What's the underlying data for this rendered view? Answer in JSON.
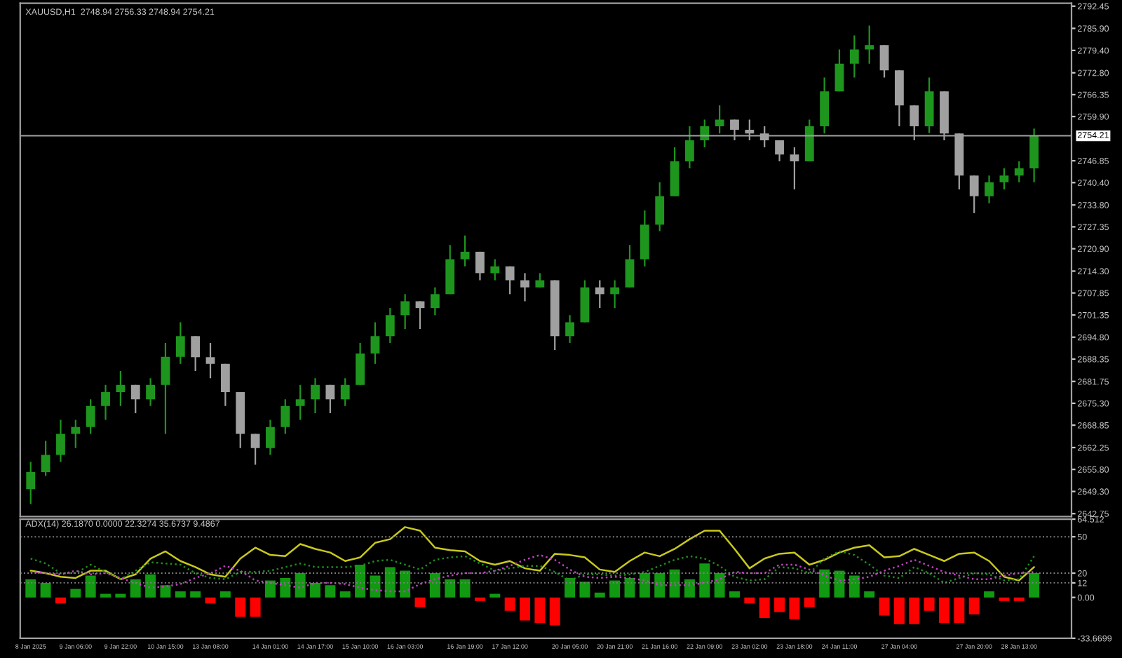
{
  "chart_data": [
    {
      "type": "candlestick",
      "title": "XAUUSD,H1  2748.94 2756.33 2748.94 2754.21",
      "tick_labels": "y",
      "grid": false,
      "legend": false,
      "categories": [
        null,
        null,
        null,
        null,
        null,
        null,
        null,
        null,
        null,
        null,
        null,
        null,
        null,
        null,
        null,
        null,
        null,
        null,
        null,
        null,
        null,
        null,
        null,
        null,
        null,
        null,
        null,
        null,
        null,
        null,
        null,
        null,
        null,
        null,
        null,
        null,
        null,
        null,
        null,
        null,
        null,
        null,
        null,
        null,
        null,
        null,
        null,
        null,
        null,
        null,
        null,
        null,
        null,
        null,
        null,
        null,
        null,
        null,
        null,
        null,
        null,
        null,
        null,
        null,
        null,
        null,
        null,
        null,
        null,
        null
      ],
      "ylim": [
        2641.9,
        2793.3
      ],
      "yticks": [
        {
          "value": 2792.45,
          "label": "2792.45"
        },
        {
          "value": 2785.9,
          "label": "2785.90"
        },
        {
          "value": 2779.4,
          "label": "2779.40"
        },
        {
          "value": 2772.8,
          "label": "2772.80"
        },
        {
          "value": 2766.35,
          "label": "2766.35"
        },
        {
          "value": 2759.9,
          "label": "2759.90"
        },
        {
          "value": 2746.85,
          "label": "2746.85"
        },
        {
          "value": 2740.4,
          "label": "2740.40"
        },
        {
          "value": 2733.8,
          "label": "2733.80"
        },
        {
          "value": 2727.35,
          "label": "2727.35"
        },
        {
          "value": 2720.9,
          "label": "2720.90"
        },
        {
          "value": 2714.3,
          "label": "2714.30"
        },
        {
          "value": 2707.85,
          "label": "2707.85"
        },
        {
          "value": 2701.35,
          "label": "2701.35"
        },
        {
          "value": 2694.8,
          "label": "2694.80"
        },
        {
          "value": 2688.35,
          "label": "2688.35"
        },
        {
          "value": 2681.75,
          "label": "2681.75"
        },
        {
          "value": 2675.3,
          "label": "2675.30"
        },
        {
          "value": 2668.85,
          "label": "2668.85"
        },
        {
          "value": 2662.25,
          "label": "2662.25"
        },
        {
          "value": 2655.8,
          "label": "2655.80"
        },
        {
          "value": 2649.3,
          "label": "2649.30"
        },
        {
          "value": 2642.75,
          "label": "2642.75"
        }
      ],
      "ref_lines": [
        {
          "axis": "y",
          "value": 2754.21,
          "label": "2754.21",
          "color": "#a0a0a0"
        }
      ],
      "ohlc": [
        [
          2650.0,
          2658.0,
          2645.6,
          2655.0
        ],
        [
          2655.0,
          2664.2,
          2653.9,
          2660.1
        ],
        [
          2660.1,
          2670.4,
          2658.0,
          2666.3
        ],
        [
          2666.3,
          2670.4,
          2662.1,
          2668.3
        ],
        [
          2668.3,
          2676.5,
          2666.3,
          2674.5
        ],
        [
          2674.5,
          2680.7,
          2670.4,
          2678.6
        ],
        [
          2678.6,
          2684.8,
          2674.5,
          2680.7
        ],
        [
          2680.7,
          2680.7,
          2672.4,
          2676.5
        ],
        [
          2676.5,
          2682.7,
          2674.5,
          2680.7
        ],
        [
          2680.7,
          2693.1,
          2666.3,
          2689.0
        ],
        [
          2689.0,
          2699.2,
          2686.9,
          2695.1
        ],
        [
          2695.1,
          2695.1,
          2684.8,
          2688.9
        ],
        [
          2688.9,
          2693.1,
          2682.7,
          2686.9
        ],
        [
          2686.9,
          2686.9,
          2674.5,
          2678.6
        ],
        [
          2678.6,
          2678.6,
          2662.1,
          2666.3
        ],
        [
          2666.3,
          2666.3,
          2657.2,
          2662.1
        ],
        [
          2662.1,
          2670.4,
          2660.1,
          2668.3
        ],
        [
          2668.3,
          2676.5,
          2666.3,
          2674.5
        ],
        [
          2674.5,
          2680.7,
          2670.4,
          2676.5
        ],
        [
          2676.5,
          2682.7,
          2672.4,
          2680.7
        ],
        [
          2680.7,
          2680.7,
          2672.4,
          2676.5
        ],
        [
          2676.5,
          2682.7,
          2674.5,
          2680.7
        ],
        [
          2680.7,
          2693.1,
          2680.7,
          2690.0
        ],
        [
          2690.0,
          2699.2,
          2686.9,
          2695.1
        ],
        [
          2695.1,
          2703.4,
          2693.1,
          2701.3
        ],
        [
          2701.3,
          2707.5,
          2697.2,
          2705.4
        ],
        [
          2705.4,
          2705.4,
          2697.2,
          2703.4
        ],
        [
          2703.4,
          2709.5,
          2701.3,
          2707.5
        ],
        [
          2707.5,
          2722.0,
          2707.5,
          2717.8
        ],
        [
          2717.8,
          2724.8,
          2715.7,
          2720.0
        ],
        [
          2720.0,
          2720.0,
          2711.6,
          2713.7
        ],
        [
          2713.7,
          2717.8,
          2711.6,
          2715.7
        ],
        [
          2715.7,
          2715.7,
          2707.5,
          2711.6
        ],
        [
          2711.6,
          2713.7,
          2705.4,
          2709.5
        ],
        [
          2709.5,
          2713.7,
          2709.5,
          2711.6
        ],
        [
          2711.6,
          2711.6,
          2691.0,
          2695.1
        ],
        [
          2695.1,
          2701.3,
          2693.1,
          2699.2
        ],
        [
          2699.2,
          2711.6,
          2699.2,
          2709.5
        ],
        [
          2709.5,
          2711.6,
          2703.4,
          2707.5
        ],
        [
          2707.5,
          2711.6,
          2703.4,
          2709.5
        ],
        [
          2709.5,
          2722.0,
          2709.5,
          2717.8
        ],
        [
          2717.8,
          2732.2,
          2715.7,
          2728.0
        ],
        [
          2728.0,
          2740.5,
          2726.1,
          2736.4
        ],
        [
          2736.4,
          2750.8,
          2736.4,
          2746.7
        ],
        [
          2746.7,
          2757.0,
          2744.6,
          2752.9
        ],
        [
          2752.9,
          2759.0,
          2750.8,
          2757.0
        ],
        [
          2757.0,
          2763.2,
          2754.9,
          2759.0
        ],
        [
          2759.0,
          2759.0,
          2752.9,
          2756.0
        ],
        [
          2756.0,
          2759.0,
          2752.9,
          2754.9
        ],
        [
          2754.9,
          2757.0,
          2750.8,
          2752.9
        ],
        [
          2752.9,
          2752.9,
          2746.7,
          2748.7
        ],
        [
          2748.7,
          2750.8,
          2738.4,
          2746.7
        ],
        [
          2746.7,
          2759.0,
          2746.7,
          2757.0
        ],
        [
          2757.0,
          2771.4,
          2754.9,
          2767.3
        ],
        [
          2767.3,
          2779.7,
          2767.3,
          2775.5
        ],
        [
          2775.5,
          2783.8,
          2771.4,
          2779.7
        ],
        [
          2779.7,
          2786.7,
          2775.5,
          2781.0
        ],
        [
          2781.0,
          2781.0,
          2771.4,
          2773.5
        ],
        [
          2773.5,
          2773.5,
          2757.0,
          2763.2
        ],
        [
          2763.2,
          2763.2,
          2752.9,
          2757.0
        ],
        [
          2757.0,
          2771.4,
          2755.0,
          2767.3
        ],
        [
          2767.3,
          2767.3,
          2752.9,
          2754.9
        ],
        [
          2754.9,
          2754.9,
          2738.4,
          2742.5
        ],
        [
          2742.5,
          2742.5,
          2731.4,
          2736.4
        ],
        [
          2736.4,
          2742.5,
          2734.3,
          2740.5
        ],
        [
          2740.5,
          2744.6,
          2738.4,
          2742.5
        ],
        [
          2742.5,
          2746.7,
          2740.5,
          2744.6
        ],
        [
          2744.6,
          2756.33,
          2740.5,
          2754.21
        ],
        null,
        null
      ],
      "colors": [
        "#1e961e",
        "#1e961e",
        "#1e961e",
        "#1e961e",
        "#1e961e",
        "#1e961e",
        "#1e961e",
        "#a0a0a0",
        "#1e961e",
        "#1e961e",
        "#1e961e",
        "#a0a0a0",
        "#a0a0a0",
        "#a0a0a0",
        "#a0a0a0",
        "#a0a0a0",
        "#1e961e",
        "#1e961e",
        "#1e961e",
        "#1e961e",
        "#a0a0a0",
        "#1e961e",
        "#1e961e",
        "#1e961e",
        "#1e961e",
        "#1e961e",
        "#a0a0a0",
        "#1e961e",
        "#1e961e",
        "#1e961e",
        "#a0a0a0",
        "#1e961e",
        "#a0a0a0",
        "#a0a0a0",
        "#1e961e",
        "#a0a0a0",
        "#1e961e",
        "#1e961e",
        "#a0a0a0",
        "#1e961e",
        "#1e961e",
        "#1e961e",
        "#1e961e",
        "#1e961e",
        "#1e961e",
        "#1e961e",
        "#1e961e",
        "#a0a0a0",
        "#a0a0a0",
        "#a0a0a0",
        "#a0a0a0",
        "#a0a0a0",
        "#1e961e",
        "#1e961e",
        "#1e961e",
        "#1e961e",
        "#1e961e",
        "#a0a0a0",
        "#a0a0a0",
        "#a0a0a0",
        "#1e961e",
        "#a0a0a0",
        "#a0a0a0",
        "#a0a0a0",
        "#1e961e",
        "#1e961e",
        "#1e961e",
        "#1e961e",
        null,
        null
      ]
    },
    {
      "type": "bar",
      "title": "ADX(14) 26.1870 0.0000 22.3274 35.6737 9.4867",
      "grid": false,
      "legend": false,
      "categories": [
        "8 Jan 2025",
        null,
        null,
        "9 Jan 06:00",
        null,
        null,
        "9 Jan 22:00",
        null,
        null,
        "10 Jan 15:00",
        null,
        null,
        "13 Jan 08:00",
        null,
        null,
        null,
        "14 Jan 01:00",
        null,
        null,
        "14 Jan 17:00",
        null,
        null,
        "15 Jan 10:00",
        null,
        null,
        "16 Jan 03:00",
        null,
        null,
        null,
        "16 Jan 19:00",
        null,
        null,
        "17 Jan 12:00",
        null,
        null,
        null,
        "20 Jan 05:00",
        null,
        null,
        "20 Jan 21:00",
        null,
        null,
        "21 Jan 16:00",
        null,
        null,
        "22 Jan 09:00",
        null,
        null,
        "23 Jan 02:00",
        null,
        null,
        "23 Jan 18:00",
        null,
        null,
        "24 Jan 11:00",
        null,
        null,
        null,
        "27 Jan 04:00",
        null,
        null,
        null,
        null,
        "27 Jan 20:00",
        null,
        null,
        "28 Jan 13:00",
        null,
        null,
        null
      ],
      "ylim": [
        -33.6699,
        64.512
      ],
      "yticks": [
        {
          "value": 64.512,
          "label": "64.512"
        },
        50,
        20,
        12,
        {
          "value": 0,
          "label": "0.00"
        },
        {
          "value": -33.6699,
          "label": "-33.6699"
        }
      ],
      "ref_lines": [
        {
          "axis": "y",
          "value": 50,
          "color": "#808080",
          "line_style": "dotted"
        },
        {
          "axis": "y",
          "value": 20,
          "color": "#808080",
          "line_style": "dotted"
        },
        {
          "axis": "y",
          "value": 12,
          "color": "#808080",
          "line_style": "dotted"
        }
      ],
      "series": [
        {
          "type": "bar",
          "values": [
            15,
            12,
            -5,
            7,
            18,
            3,
            3,
            15,
            19,
            10,
            5,
            5,
            -5,
            5,
            -16,
            -16,
            14,
            16,
            20,
            12,
            10,
            5,
            27,
            18,
            25,
            22,
            -8,
            20,
            15,
            15,
            -3,
            3,
            -11,
            -19,
            -21,
            -23,
            16,
            13,
            4,
            14,
            16,
            20,
            20,
            23,
            15,
            28,
            20,
            5,
            -5,
            -17,
            -12,
            -18,
            -8,
            23,
            22,
            18,
            5,
            -15,
            -22,
            -22,
            -11,
            -21,
            -21,
            -14,
            5,
            -3,
            -3,
            20,
            null,
            null
          ],
          "colors": [
            "#119911",
            "#119911",
            "#ff0000",
            "#119911",
            "#119911",
            "#119911",
            "#119911",
            "#119911",
            "#119911",
            "#119911",
            "#119911",
            "#119911",
            "#ff0000",
            "#119911",
            "#ff0000",
            "#ff0000",
            "#119911",
            "#119911",
            "#119911",
            "#119911",
            "#119911",
            "#119911",
            "#119911",
            "#119911",
            "#119911",
            "#119911",
            "#ff0000",
            "#119911",
            "#119911",
            "#119911",
            "#ff0000",
            "#119911",
            "#ff0000",
            "#ff0000",
            "#ff0000",
            "#ff0000",
            "#119911",
            "#119911",
            "#119911",
            "#119911",
            "#119911",
            "#119911",
            "#119911",
            "#119911",
            "#119911",
            "#119911",
            "#119911",
            "#119911",
            "#ff0000",
            "#ff0000",
            "#ff0000",
            "#ff0000",
            "#ff0000",
            "#119911",
            "#119911",
            "#119911",
            "#119911",
            "#ff0000",
            "#ff0000",
            "#ff0000",
            "#ff0000",
            "#ff0000",
            "#ff0000",
            "#ff0000",
            "#119911",
            "#ff0000",
            "#ff0000",
            "#119911",
            null,
            null
          ]
        },
        {
          "type": "line",
          "color": "#c8c81e",
          "values": [
            22,
            20,
            17,
            16,
            22,
            22,
            15,
            19,
            32,
            38,
            30,
            25,
            19,
            17,
            32,
            41,
            35,
            34,
            44,
            40,
            37,
            30,
            33,
            45,
            48,
            58,
            55,
            41,
            39,
            38,
            30,
            27,
            30,
            24,
            22,
            36,
            35,
            33,
            23,
            21,
            30,
            37,
            34,
            40,
            48,
            55,
            55,
            40,
            24,
            32,
            36,
            37,
            27,
            31,
            37,
            41,
            43,
            33,
            34,
            40,
            35,
            30,
            36,
            37,
            30,
            17,
            14,
            25,
            null,
            null
          ]
        },
        {
          "type": "line",
          "line_style": "dotted",
          "color": "#1e8c1e",
          "values": [
            32,
            28,
            20,
            20,
            27,
            21,
            15,
            22,
            29,
            28,
            27,
            20,
            16,
            15,
            21,
            21,
            22,
            25,
            28,
            25,
            25,
            25,
            26,
            30,
            31,
            27,
            23,
            31,
            33,
            34,
            28,
            22,
            24,
            26,
            26,
            21,
            14,
            19,
            19,
            18,
            19,
            21,
            26,
            31,
            34,
            32,
            26,
            17,
            14,
            15,
            25,
            24,
            20,
            32,
            38,
            35,
            27,
            18,
            16,
            25,
            20,
            12,
            16,
            20,
            19,
            14,
            15,
            34,
            null,
            null
          ]
        },
        {
          "type": "line",
          "line_style": "dotted",
          "color": "#c040c0",
          "values": [
            21,
            20,
            19,
            22,
            19,
            20,
            16,
            12,
            8,
            9,
            11,
            16,
            20,
            26,
            22,
            14,
            12,
            10,
            8,
            12,
            12,
            11,
            8,
            6,
            5,
            5,
            11,
            15,
            18,
            20,
            20,
            22,
            26,
            31,
            35,
            31,
            23,
            17,
            16,
            17,
            16,
            14,
            10,
            10,
            10,
            12,
            15,
            21,
            20,
            20,
            27,
            27,
            23,
            18,
            14,
            15,
            17,
            22,
            26,
            31,
            26,
            21,
            18,
            15,
            15,
            18,
            20,
            21,
            null,
            null
          ]
        }
      ]
    }
  ]
}
